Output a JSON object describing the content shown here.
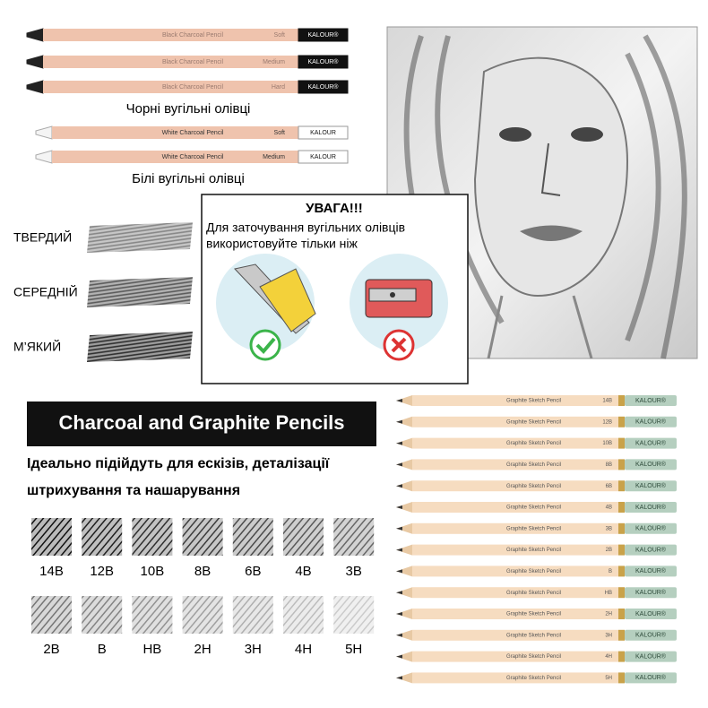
{
  "charcoal": {
    "black": {
      "label": "Black Charcoal Pencil",
      "brand": "KALOUR®",
      "grades": [
        "Soft",
        "Medium",
        "Hard"
      ],
      "caption": "Чорні вугільні олівці"
    },
    "white": {
      "label": "White Charcoal Pencil",
      "brand": "KALOUR",
      "grades": [
        "Soft",
        "Medium"
      ],
      "caption": "Білі вугільні олівці"
    }
  },
  "hardness": [
    "ТВЕРДИЙ",
    "СЕРЕДНІЙ",
    "М’ЯКИЙ"
  ],
  "warning": {
    "title": "УВАГА!!!",
    "lines": [
      "Для заточування вугільних олівців",
      "використовуйте тільки ніж"
    ]
  },
  "banner": "Charcoal and Graphite Pencils",
  "subtitle": [
    "Ідеально підійдуть для ескізів, деталізації",
    "штрихування та нашарування"
  ],
  "swatches": [
    [
      "14B",
      "12B",
      "10B",
      "8B",
      "6B",
      "4B",
      "3B"
    ],
    [
      "2B",
      "B",
      "HB",
      "2H",
      "3H",
      "4H",
      "5H"
    ]
  ],
  "graphite": {
    "label": "Graphite Sketch Pencil",
    "brand": "KALOUR®",
    "grades": [
      "14B",
      "12B",
      "10B",
      "8B",
      "6B",
      "4B",
      "3B",
      "2B",
      "B",
      "HB",
      "2H",
      "3H",
      "4H",
      "5H"
    ]
  }
}
